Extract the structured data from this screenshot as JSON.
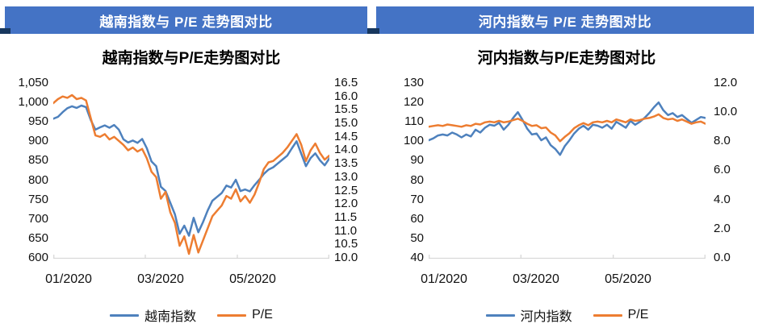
{
  "headers": {
    "left": "越南指数与 P/E 走势图对比",
    "right": "河内指数与 P/E 走势图对比",
    "bar_color": "#4473C5",
    "notch_color": "#17375E",
    "text_color": "#FFFFFF"
  },
  "colors": {
    "index_line": "#4E81BD",
    "pe_line": "#ED7D31",
    "axis_line": "#D8D8D8",
    "text": "#000000"
  },
  "chart_data": [
    {
      "type": "line",
      "title": "越南指数与P/E走势图对比",
      "legend_position": "bottom",
      "grid": false,
      "x_ticks": [
        "01/2020",
        "03/2020",
        "05/2020"
      ],
      "x_range": "01/2020 - 06/2020",
      "y_left": {
        "min": 600,
        "max": 1050,
        "tick_labels": [
          "1,050",
          "1,000",
          "950",
          "900",
          "850",
          "800",
          "750",
          "700",
          "650",
          "600"
        ]
      },
      "y_right": {
        "min": 10.0,
        "max": 16.5,
        "tick_labels": [
          "16.5",
          "16.0",
          "15.5",
          "15.0",
          "14.5",
          "14.0",
          "13.5",
          "13.0",
          "12.5",
          "12.0",
          "11.5",
          "11.0",
          "10.5",
          "10.0"
        ]
      },
      "series": [
        {
          "name": "越南指数",
          "axis": "left",
          "color": "#4E81BD",
          "values": [
            958,
            963,
            975,
            985,
            990,
            986,
            992,
            988,
            955,
            930,
            936,
            941,
            935,
            942,
            930,
            905,
            897,
            902,
            896,
            906,
            882,
            848,
            836,
            783,
            772,
            742,
            712,
            662,
            683,
            657,
            703,
            666,
            692,
            722,
            747,
            757,
            767,
            786,
            781,
            801,
            772,
            776,
            771,
            787,
            801,
            816,
            827,
            833,
            843,
            853,
            863,
            882,
            900,
            868,
            836,
            857,
            869,
            851,
            838,
            856
          ]
        },
        {
          "name": "P/E",
          "axis": "right",
          "color": "#ED7D31",
          "values": [
            15.75,
            15.9,
            16.0,
            15.95,
            16.05,
            15.9,
            15.95,
            15.85,
            15.2,
            14.55,
            14.5,
            14.6,
            14.4,
            14.5,
            14.35,
            14.2,
            14.0,
            14.1,
            13.95,
            14.05,
            13.7,
            13.2,
            13.0,
            12.2,
            12.45,
            11.7,
            11.3,
            10.45,
            10.8,
            10.15,
            10.85,
            10.2,
            10.65,
            11.1,
            11.55,
            11.75,
            11.95,
            12.3,
            12.2,
            12.55,
            12.1,
            12.3,
            12.05,
            12.35,
            12.8,
            13.3,
            13.55,
            13.6,
            13.75,
            13.9,
            14.1,
            14.35,
            14.6,
            14.2,
            13.6,
            14.0,
            14.25,
            13.9,
            13.65,
            13.8
          ]
        }
      ]
    },
    {
      "type": "line",
      "title": "河内指数与P/E走势图对比",
      "legend_position": "bottom",
      "grid": false,
      "x_ticks": [
        "01/2020",
        "03/2020",
        "05/2020"
      ],
      "x_range": "01/2020 - 06/2020",
      "y_left": {
        "min": 40,
        "max": 130,
        "tick_labels": [
          "130",
          "120",
          "110",
          "100",
          "90",
          "80",
          "70",
          "60",
          "50",
          "40"
        ]
      },
      "y_right": {
        "min": 0.0,
        "max": 12.0,
        "tick_labels": [
          "12.0",
          "10.0",
          "8.0",
          "6.0",
          "4.0",
          "2.0",
          "0.0"
        ]
      },
      "series": [
        {
          "name": "河内指数",
          "axis": "left",
          "color": "#4E81BD",
          "values": [
            100.5,
            101.5,
            103,
            103.5,
            103,
            104.5,
            103.5,
            102,
            103.5,
            102.5,
            106,
            104.5,
            107,
            108.5,
            108,
            109.5,
            106,
            108.5,
            112,
            115,
            111,
            106.5,
            103.5,
            104,
            100.5,
            102,
            98,
            96,
            93,
            97.5,
            100.5,
            104,
            106.5,
            108,
            106,
            108.5,
            108,
            107,
            108.5,
            106.5,
            110,
            108.5,
            107,
            110.5,
            108.5,
            110,
            112,
            114.5,
            117.5,
            120,
            116,
            113.5,
            114.5,
            112.5,
            113.5,
            111.5,
            109.5,
            111,
            112.5,
            112
          ]
        },
        {
          "name": "P/E",
          "axis": "right",
          "color": "#ED7D31",
          "values": [
            9.0,
            9.05,
            9.1,
            9.05,
            9.15,
            9.1,
            9.05,
            9.0,
            9.1,
            9.05,
            9.2,
            9.15,
            9.3,
            9.35,
            9.3,
            9.4,
            9.3,
            9.35,
            9.45,
            9.55,
            9.4,
            9.2,
            9.05,
            9.1,
            8.9,
            8.95,
            8.6,
            8.4,
            8.0,
            8.3,
            8.55,
            8.9,
            9.1,
            9.25,
            9.1,
            9.3,
            9.35,
            9.3,
            9.4,
            9.3,
            9.5,
            9.4,
            9.3,
            9.5,
            9.4,
            9.45,
            9.55,
            9.6,
            9.7,
            9.85,
            9.6,
            9.5,
            9.55,
            9.4,
            9.5,
            9.35,
            9.2,
            9.3,
            9.35,
            9.2
          ]
        }
      ]
    }
  ]
}
